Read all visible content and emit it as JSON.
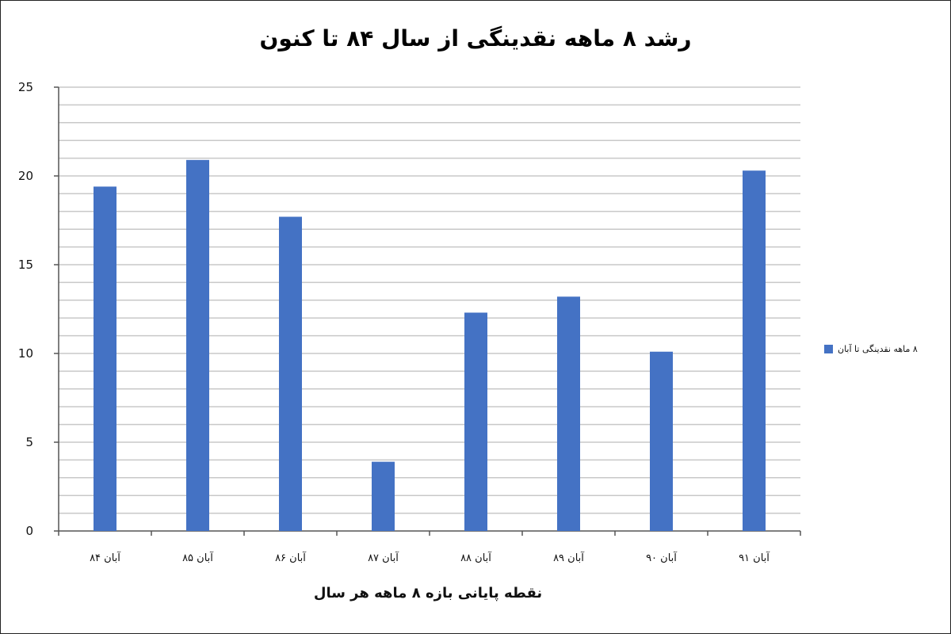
{
  "chart_data": {
    "type": "bar",
    "title": "رشد ۸ ماهه نقدینگی از سال ۸۴ تا کنون",
    "xlabel": "نقطه پایانی بازه ۸ ماهه هر سال",
    "ylabel": "",
    "categories": [
      "آبان ۸۴",
      "آبان ۸۵",
      "آبان ۸۶",
      "آبان ۸۷",
      "آبان ۸۸",
      "آبان ۸۹",
      "آبان ۹۰",
      "آبان ۹۱"
    ],
    "series": [
      {
        "name": "۸ ماهه نقدینگی تا آبان",
        "values": [
          19.4,
          20.9,
          17.7,
          3.9,
          12.3,
          13.2,
          10.1,
          20.3
        ]
      }
    ],
    "yticks": [
      "0",
      "5",
      "10",
      "15",
      "20",
      "25"
    ],
    "ylim": [
      0,
      25
    ],
    "minor_gridlines_every": 1,
    "grid": true,
    "legend_position": "right",
    "bar_color": "#4472c4",
    "grid_color": "#c8c8c8"
  }
}
